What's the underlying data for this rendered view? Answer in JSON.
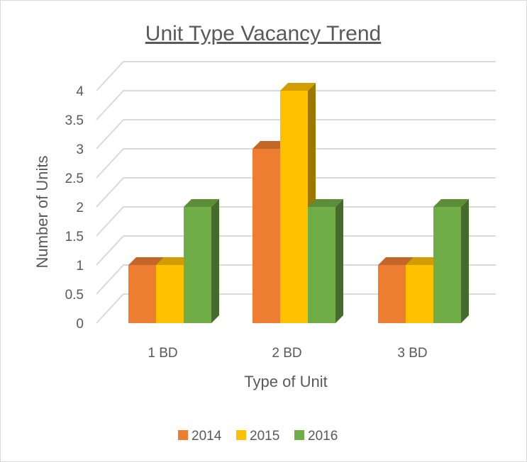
{
  "chart_data": {
    "type": "bar",
    "style": "3d-clustered-column",
    "title": "Unit Type Vacancy Trend",
    "xlabel": "Type of Unit",
    "ylabel": "Number of Units",
    "categories": [
      "1 BD",
      "2 BD",
      "3 BD"
    ],
    "series": [
      {
        "name": "2014",
        "values": [
          1,
          3,
          1
        ],
        "color": "#ED7D31"
      },
      {
        "name": "2015",
        "values": [
          1,
          4,
          1
        ],
        "color": "#FFC000"
      },
      {
        "name": "2016",
        "values": [
          2,
          2,
          2
        ],
        "color": "#70AD47"
      }
    ],
    "ylim": [
      0,
      4
    ],
    "yticks": [
      "0",
      "0.5",
      "1",
      "1.5",
      "2",
      "2.5",
      "3",
      "3.5",
      "4"
    ],
    "grid": true,
    "legend": "bottom"
  }
}
